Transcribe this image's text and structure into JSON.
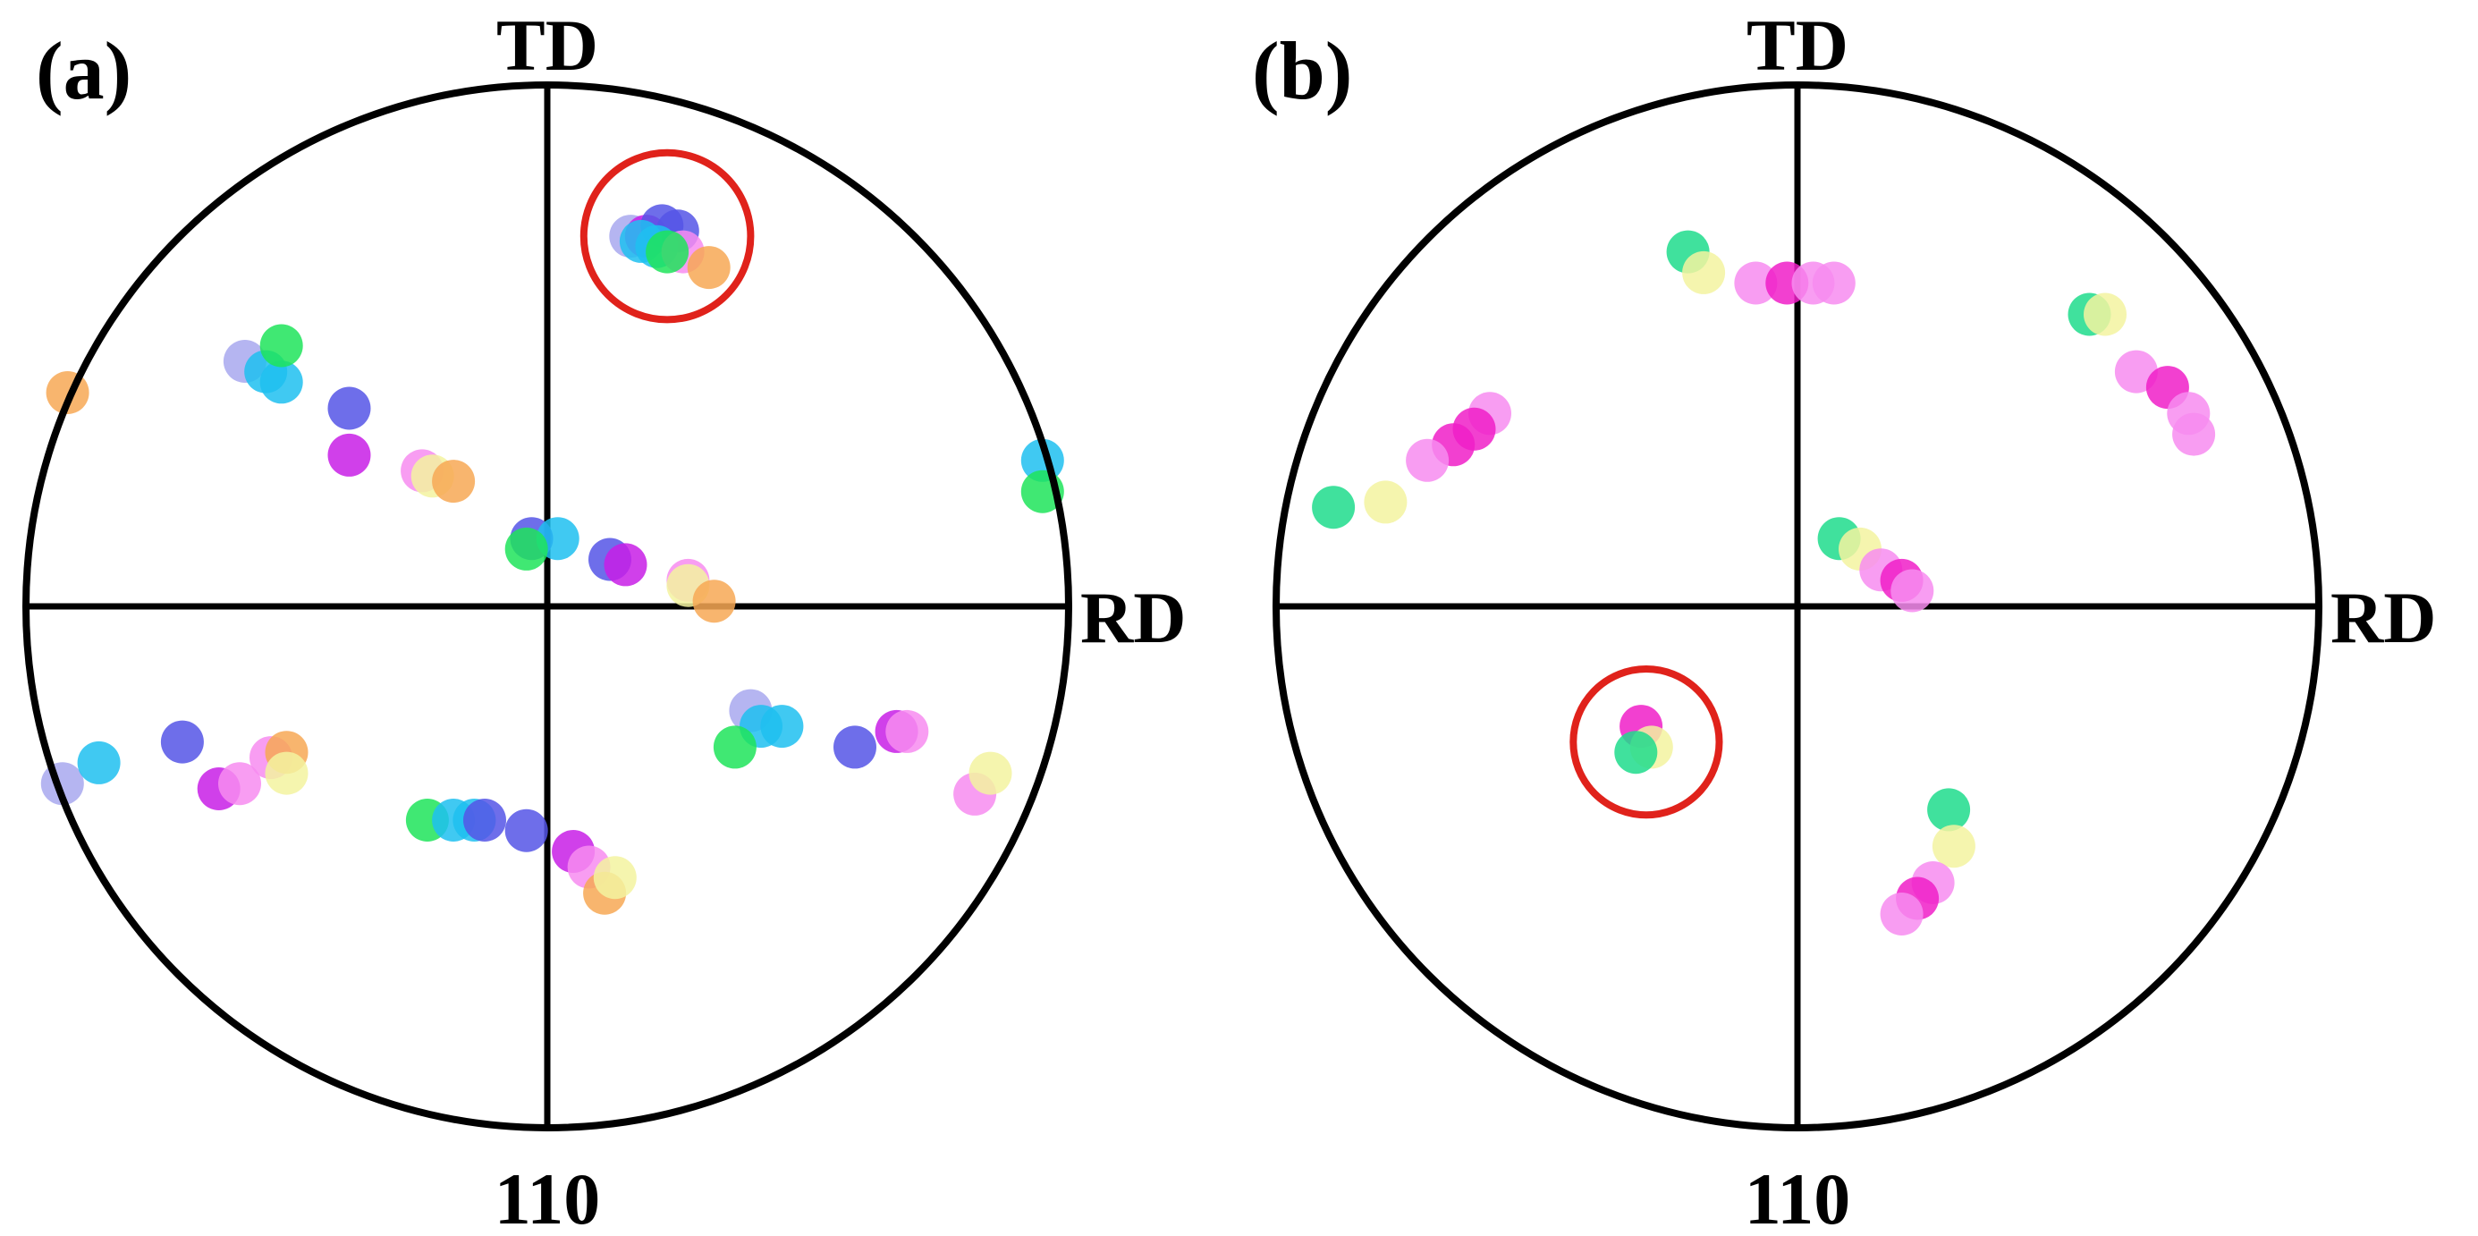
{
  "figure": {
    "panels": [
      {
        "id": "a",
        "letter": "(a)",
        "top_label": "TD",
        "right_label": "RD",
        "bottom_label": "110"
      },
      {
        "id": "b",
        "letter": "(b)",
        "top_label": "TD",
        "right_label": "RD",
        "bottom_label": "110"
      }
    ]
  },
  "colors": {
    "highlight_ring": "#e0221b",
    "palette": {
      "green": "#1ee45a",
      "cyan": "#1ec0f0",
      "blue": "#5555e6",
      "purple": "#c81ee6",
      "magenta": "#f01ec8",
      "pink": "#f78cf0",
      "yellow": "#f3f3a0",
      "orange": "#f7a855",
      "lavender": "#a8a8ee",
      "seagreen": "#1edc8c"
    }
  },
  "chart_data": [
    {
      "type": "scatter",
      "title": "(a)",
      "xlabel": "RD",
      "ylabel": "TD",
      "center_label": "110",
      "xlim": [
        -1,
        1
      ],
      "ylim": [
        -1,
        1
      ],
      "grid": false,
      "highlight": {
        "x": 0.23,
        "y": 0.71,
        "r": 0.16
      },
      "points": [
        {
          "x": 0.16,
          "y": 0.71,
          "c": "lavender"
        },
        {
          "x": 0.19,
          "y": 0.71,
          "c": "purple"
        },
        {
          "x": 0.22,
          "y": 0.73,
          "c": "blue"
        },
        {
          "x": 0.25,
          "y": 0.72,
          "c": "blue"
        },
        {
          "x": 0.18,
          "y": 0.7,
          "c": "cyan"
        },
        {
          "x": 0.21,
          "y": 0.69,
          "c": "cyan"
        },
        {
          "x": 0.26,
          "y": 0.68,
          "c": "pink"
        },
        {
          "x": 0.31,
          "y": 0.65,
          "c": "orange"
        },
        {
          "x": 0.23,
          "y": 0.68,
          "c": "green"
        },
        {
          "x": -0.92,
          "y": 0.41,
          "c": "orange"
        },
        {
          "x": -0.58,
          "y": 0.47,
          "c": "lavender"
        },
        {
          "x": -0.54,
          "y": 0.45,
          "c": "cyan"
        },
        {
          "x": -0.51,
          "y": 0.43,
          "c": "cyan"
        },
        {
          "x": -0.51,
          "y": 0.5,
          "c": "green"
        },
        {
          "x": -0.38,
          "y": 0.38,
          "c": "blue"
        },
        {
          "x": -0.38,
          "y": 0.29,
          "c": "purple"
        },
        {
          "x": -0.24,
          "y": 0.26,
          "c": "pink"
        },
        {
          "x": -0.22,
          "y": 0.25,
          "c": "yellow"
        },
        {
          "x": -0.18,
          "y": 0.24,
          "c": "orange"
        },
        {
          "x": -0.03,
          "y": 0.13,
          "c": "blue"
        },
        {
          "x": 0.02,
          "y": 0.13,
          "c": "cyan"
        },
        {
          "x": -0.04,
          "y": 0.11,
          "c": "green"
        },
        {
          "x": 0.12,
          "y": 0.09,
          "c": "blue"
        },
        {
          "x": 0.15,
          "y": 0.08,
          "c": "purple"
        },
        {
          "x": 0.27,
          "y": 0.05,
          "c": "pink"
        },
        {
          "x": 0.27,
          "y": 0.04,
          "c": "yellow"
        },
        {
          "x": 0.32,
          "y": 0.01,
          "c": "orange"
        },
        {
          "x": 0.95,
          "y": 0.28,
          "c": "cyan"
        },
        {
          "x": 0.95,
          "y": 0.22,
          "c": "green"
        },
        {
          "x": -0.93,
          "y": -0.34,
          "c": "lavender"
        },
        {
          "x": -0.86,
          "y": -0.3,
          "c": "cyan"
        },
        {
          "x": -0.7,
          "y": -0.26,
          "c": "blue"
        },
        {
          "x": -0.63,
          "y": -0.35,
          "c": "purple"
        },
        {
          "x": -0.59,
          "y": -0.34,
          "c": "pink"
        },
        {
          "x": -0.53,
          "y": -0.29,
          "c": "pink"
        },
        {
          "x": -0.5,
          "y": -0.28,
          "c": "orange"
        },
        {
          "x": -0.5,
          "y": -0.32,
          "c": "yellow"
        },
        {
          "x": -0.23,
          "y": -0.41,
          "c": "green"
        },
        {
          "x": -0.18,
          "y": -0.41,
          "c": "cyan"
        },
        {
          "x": -0.14,
          "y": -0.41,
          "c": "cyan"
        },
        {
          "x": -0.12,
          "y": -0.41,
          "c": "blue"
        },
        {
          "x": -0.04,
          "y": -0.43,
          "c": "blue"
        },
        {
          "x": 0.05,
          "y": -0.47,
          "c": "purple"
        },
        {
          "x": 0.08,
          "y": -0.5,
          "c": "pink"
        },
        {
          "x": 0.11,
          "y": -0.55,
          "c": "orange"
        },
        {
          "x": 0.13,
          "y": -0.52,
          "c": "yellow"
        },
        {
          "x": 0.39,
          "y": -0.2,
          "c": "lavender"
        },
        {
          "x": 0.41,
          "y": -0.23,
          "c": "cyan"
        },
        {
          "x": 0.45,
          "y": -0.23,
          "c": "cyan"
        },
        {
          "x": 0.36,
          "y": -0.27,
          "c": "green"
        },
        {
          "x": 0.59,
          "y": -0.27,
          "c": "blue"
        },
        {
          "x": 0.67,
          "y": -0.24,
          "c": "purple"
        },
        {
          "x": 0.69,
          "y": -0.24,
          "c": "pink"
        },
        {
          "x": 0.82,
          "y": -0.36,
          "c": "pink"
        },
        {
          "x": 0.85,
          "y": -0.32,
          "c": "yellow"
        }
      ]
    },
    {
      "type": "scatter",
      "title": "(b)",
      "xlabel": "RD",
      "ylabel": "TD",
      "center_label": "110",
      "xlim": [
        -1,
        1
      ],
      "ylim": [
        -1,
        1
      ],
      "grid": false,
      "highlight": {
        "x": -0.29,
        "y": -0.26,
        "r": 0.14
      },
      "points": [
        {
          "x": -0.21,
          "y": 0.68,
          "c": "seagreen"
        },
        {
          "x": -0.18,
          "y": 0.64,
          "c": "yellow"
        },
        {
          "x": -0.08,
          "y": 0.62,
          "c": "pink"
        },
        {
          "x": -0.02,
          "y": 0.62,
          "c": "magenta"
        },
        {
          "x": 0.03,
          "y": 0.62,
          "c": "pink"
        },
        {
          "x": 0.07,
          "y": 0.62,
          "c": "pink"
        },
        {
          "x": 0.56,
          "y": 0.56,
          "c": "seagreen"
        },
        {
          "x": 0.59,
          "y": 0.56,
          "c": "yellow"
        },
        {
          "x": 0.65,
          "y": 0.45,
          "c": "pink"
        },
        {
          "x": 0.71,
          "y": 0.42,
          "c": "magenta"
        },
        {
          "x": 0.75,
          "y": 0.37,
          "c": "pink"
        },
        {
          "x": 0.76,
          "y": 0.33,
          "c": "pink"
        },
        {
          "x": -0.59,
          "y": 0.37,
          "c": "pink"
        },
        {
          "x": -0.62,
          "y": 0.34,
          "c": "magenta"
        },
        {
          "x": -0.66,
          "y": 0.31,
          "c": "magenta"
        },
        {
          "x": -0.71,
          "y": 0.28,
          "c": "pink"
        },
        {
          "x": -0.79,
          "y": 0.2,
          "c": "yellow"
        },
        {
          "x": -0.89,
          "y": 0.19,
          "c": "seagreen"
        },
        {
          "x": 0.08,
          "y": 0.13,
          "c": "seagreen"
        },
        {
          "x": 0.12,
          "y": 0.11,
          "c": "yellow"
        },
        {
          "x": 0.16,
          "y": 0.07,
          "c": "pink"
        },
        {
          "x": 0.2,
          "y": 0.05,
          "c": "magenta"
        },
        {
          "x": 0.22,
          "y": 0.03,
          "c": "pink"
        },
        {
          "x": -0.3,
          "y": -0.23,
          "c": "magenta"
        },
        {
          "x": -0.28,
          "y": -0.27,
          "c": "yellow"
        },
        {
          "x": -0.31,
          "y": -0.28,
          "c": "seagreen"
        },
        {
          "x": 0.29,
          "y": -0.39,
          "c": "seagreen"
        },
        {
          "x": 0.3,
          "y": -0.46,
          "c": "yellow"
        },
        {
          "x": 0.26,
          "y": -0.53,
          "c": "pink"
        },
        {
          "x": 0.23,
          "y": -0.56,
          "c": "magenta"
        },
        {
          "x": 0.2,
          "y": -0.59,
          "c": "pink"
        }
      ]
    }
  ]
}
